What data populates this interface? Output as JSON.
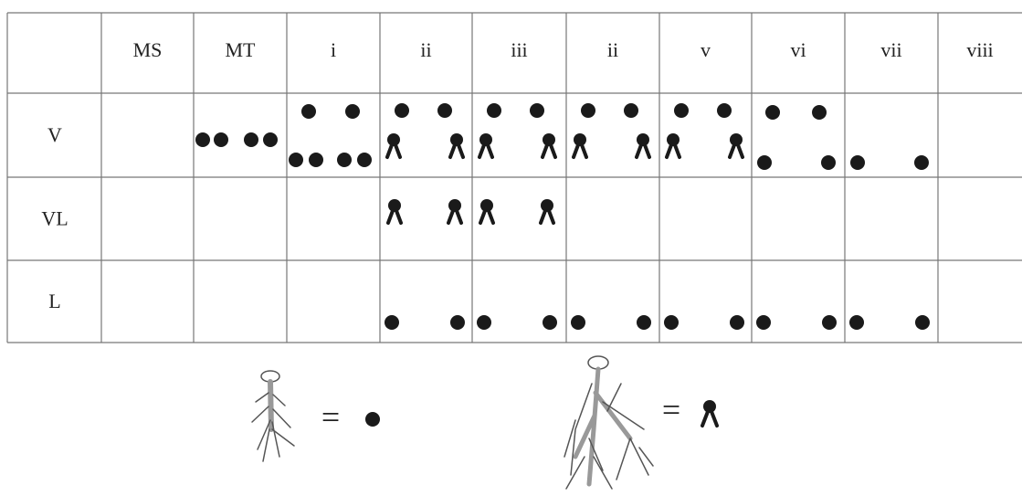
{
  "table": {
    "header": [
      "MS",
      "MT",
      "i",
      "ii",
      "iii",
      "ii",
      "v",
      "vi",
      "vii",
      "viii"
    ],
    "rows": [
      "V",
      "VL",
      "L"
    ]
  },
  "legend": {
    "equals_dot": "=",
    "equals_root": "="
  }
}
